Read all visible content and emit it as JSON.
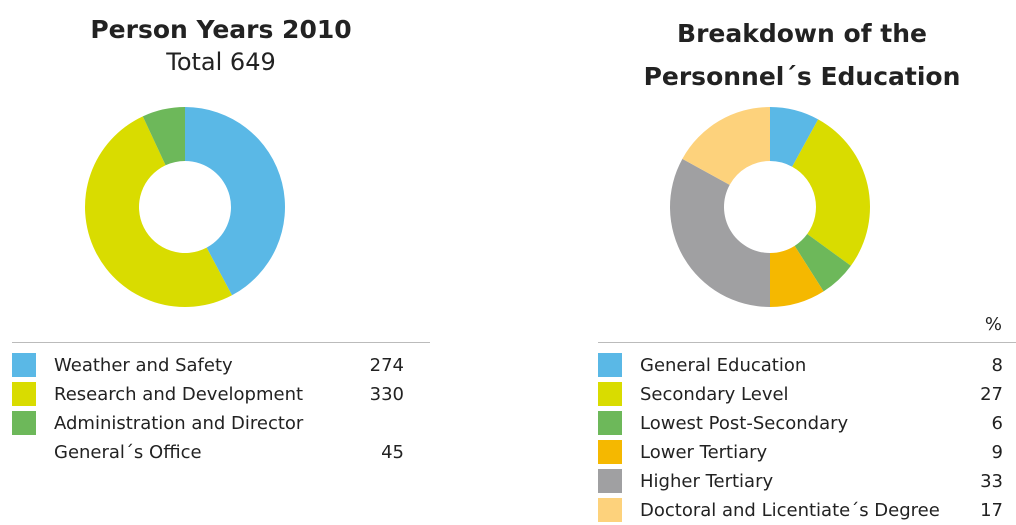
{
  "chart_data": [
    {
      "type": "donut",
      "title": "Person Years 2010",
      "subtitle": "Total 649",
      "categories": [
        "Weather and Safety",
        "Research and Development",
        "Administration and Director General´s Office"
      ],
      "values": [
        274,
        330,
        45
      ],
      "colors": [
        "#5ab8e6",
        "#d9dc00",
        "#6db85a"
      ]
    },
    {
      "type": "donut",
      "title": "Breakdown of the Personnel´s Education",
      "unit_label": "%",
      "categories": [
        "General Education",
        "Secondary Level",
        "Lowest Post-Secondary",
        "Lower Tertiary",
        "Higher Tertiary",
        "Doctoral and Licentiate´s Degree"
      ],
      "values": [
        8,
        27,
        6,
        9,
        33,
        17
      ],
      "colors": [
        "#5ab8e6",
        "#d9dc00",
        "#6db85a",
        "#f5b800",
        "#a0a0a2",
        "#fdd27c"
      ]
    }
  ]
}
